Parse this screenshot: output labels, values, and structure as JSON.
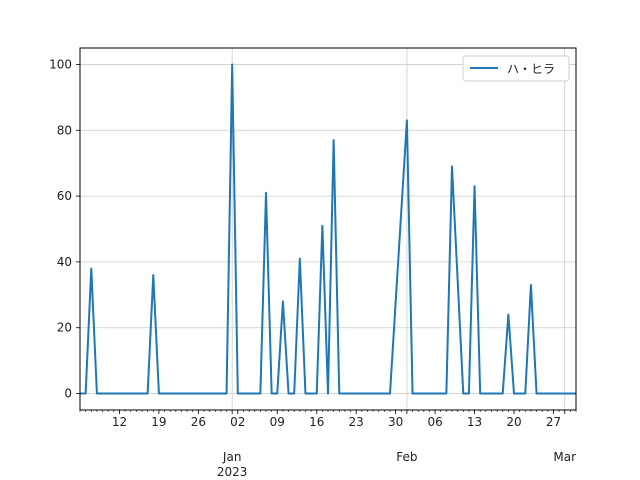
{
  "chart_data": {
    "type": "line",
    "title": "",
    "xlabel": "",
    "ylabel": "",
    "xlim": [
      "2022-12-05",
      "2023-03-03"
    ],
    "ylim": [
      -5,
      105
    ],
    "grid": true,
    "legend_position": "top-right",
    "line_color": "#1f77b4",
    "y_ticks": [
      0,
      20,
      40,
      60,
      80,
      100
    ],
    "x_ticks": [
      {
        "date": "2022-12-12",
        "label": "12"
      },
      {
        "date": "2022-12-19",
        "label": "19"
      },
      {
        "date": "2022-12-26",
        "label": "26"
      },
      {
        "date": "2023-01-01",
        "label": "Jan",
        "year_label": "2023"
      },
      {
        "date": "2023-01-02",
        "label": "02"
      },
      {
        "date": "2023-01-09",
        "label": "09"
      },
      {
        "date": "2023-01-16",
        "label": "16"
      },
      {
        "date": "2023-01-23",
        "label": "23"
      },
      {
        "date": "2023-01-30",
        "label": "30"
      },
      {
        "date": "2023-02-01",
        "label": "Feb"
      },
      {
        "date": "2023-02-06",
        "label": "06"
      },
      {
        "date": "2023-02-13",
        "label": "13"
      },
      {
        "date": "2023-02-20",
        "label": "20"
      },
      {
        "date": "2023-02-27",
        "label": "27"
      },
      {
        "date": "2023-03-01",
        "label": "Mar"
      }
    ],
    "series": [
      {
        "name": "ハ・ヒラ",
        "points": [
          [
            "2022-12-05",
            0
          ],
          [
            "2022-12-06",
            0
          ],
          [
            "2022-12-07",
            38
          ],
          [
            "2022-12-08",
            0
          ],
          [
            "2022-12-13",
            0
          ],
          [
            "2022-12-17",
            0
          ],
          [
            "2022-12-18",
            36
          ],
          [
            "2022-12-19",
            0
          ],
          [
            "2022-12-31",
            0
          ],
          [
            "2023-01-01",
            100
          ],
          [
            "2023-01-02",
            0
          ],
          [
            "2023-01-06",
            0
          ],
          [
            "2023-01-07",
            61
          ],
          [
            "2023-01-08",
            0
          ],
          [
            "2023-01-09",
            0
          ],
          [
            "2023-01-10",
            28
          ],
          [
            "2023-01-11",
            0
          ],
          [
            "2023-01-12",
            0
          ],
          [
            "2023-01-13",
            41
          ],
          [
            "2023-01-14",
            0
          ],
          [
            "2023-01-16",
            0
          ],
          [
            "2023-01-17",
            51
          ],
          [
            "2023-01-18",
            0
          ],
          [
            "2023-01-19",
            77
          ],
          [
            "2023-01-20",
            0
          ],
          [
            "2023-01-29",
            0
          ],
          [
            "2023-02-01",
            83
          ],
          [
            "2023-02-02",
            0
          ],
          [
            "2023-02-08",
            0
          ],
          [
            "2023-02-09",
            69
          ],
          [
            "2023-02-11",
            0
          ],
          [
            "2023-02-12",
            0
          ],
          [
            "2023-02-13",
            63
          ],
          [
            "2023-02-14",
            0
          ],
          [
            "2023-02-18",
            0
          ],
          [
            "2023-02-19",
            24
          ],
          [
            "2023-02-20",
            0
          ],
          [
            "2023-02-22",
            0
          ],
          [
            "2023-02-23",
            33
          ],
          [
            "2023-02-24",
            0
          ],
          [
            "2023-03-03",
            0
          ]
        ]
      }
    ]
  }
}
